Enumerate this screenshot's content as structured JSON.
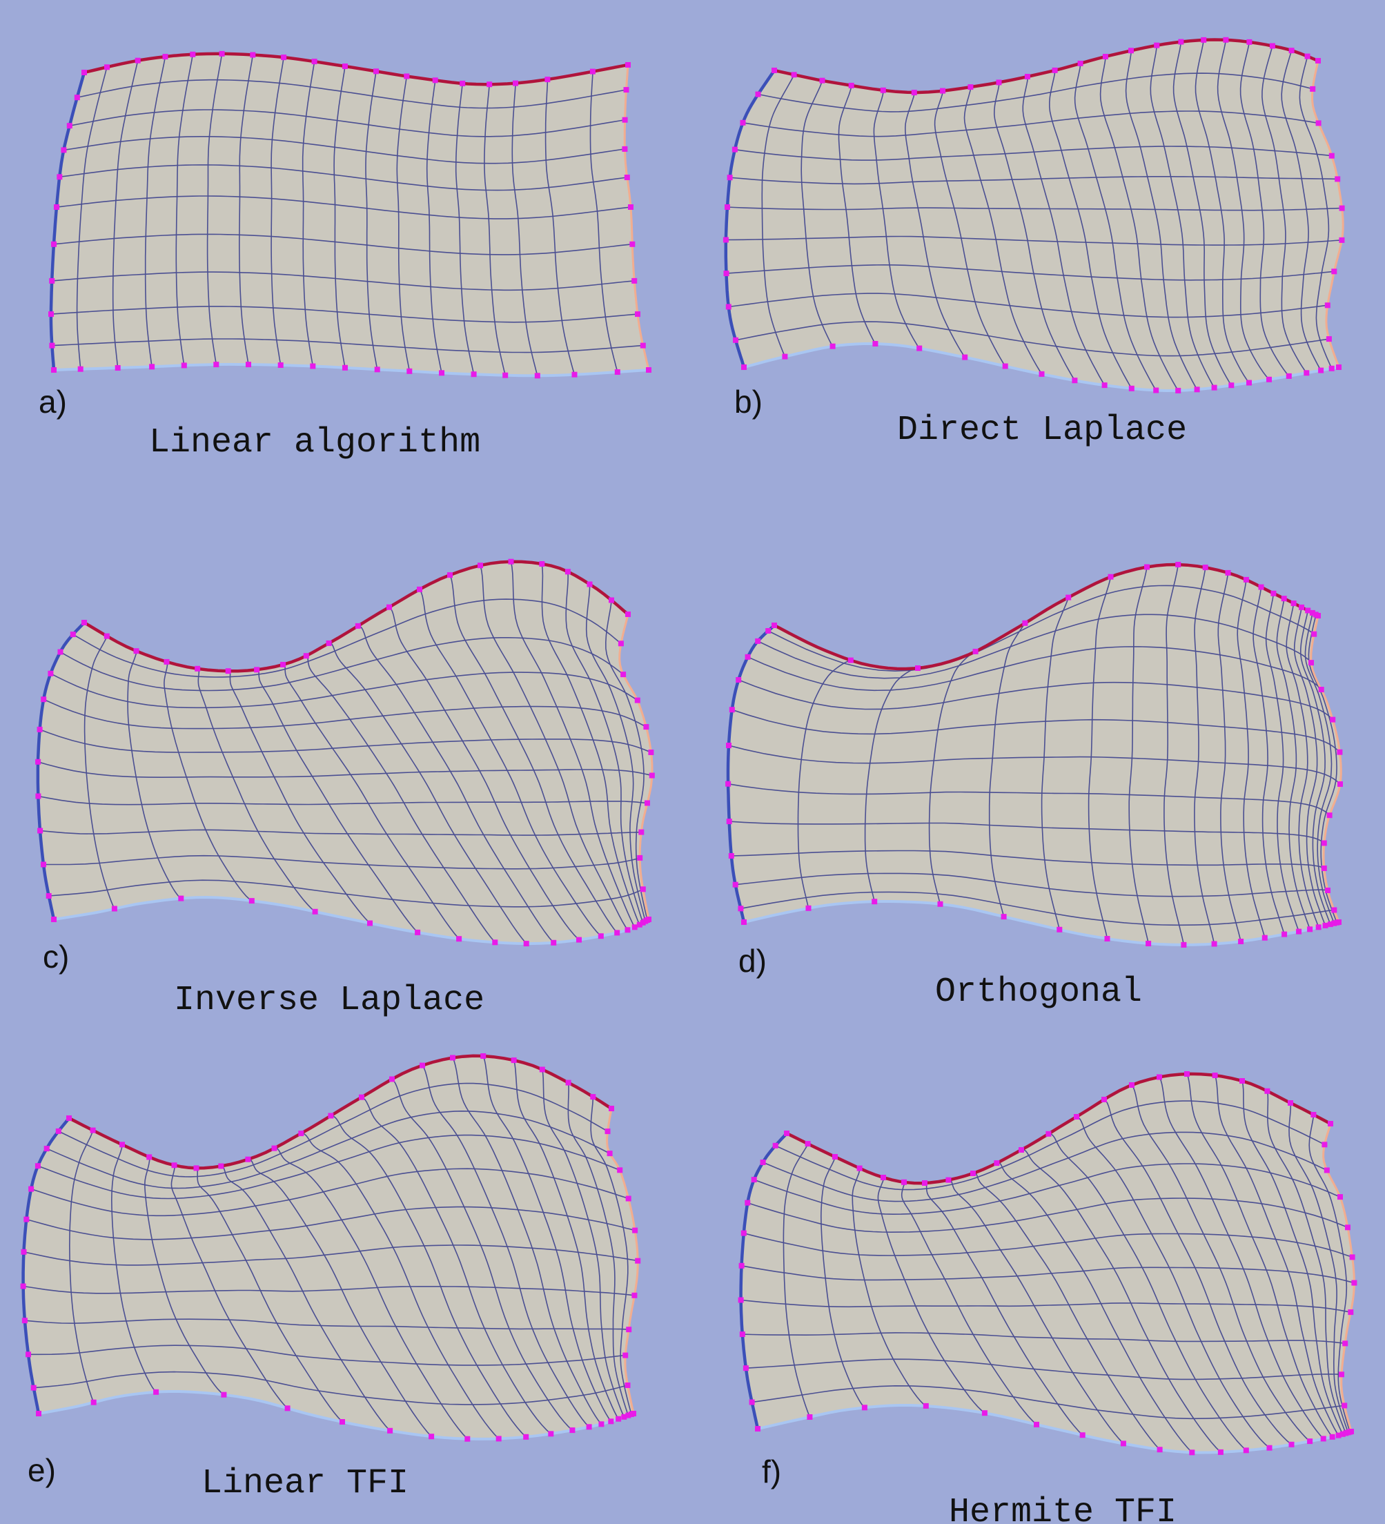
{
  "figure": {
    "background": "#9eaad8",
    "mesh_fill": "#cbc8be",
    "grid_line": "#4b4f92",
    "node_color": "#e81be8",
    "edges": {
      "top": "#b0143c",
      "left": "#3b4fb8",
      "right": "#f2ad90",
      "bottom": "#a9c6f2"
    }
  },
  "panels": [
    {
      "letter": "a)",
      "title": "Linear algorithm"
    },
    {
      "letter": "b)",
      "title": "Direct Laplace"
    },
    {
      "letter": "c)",
      "title": "Inverse Laplace"
    },
    {
      "letter": "d)",
      "title": "Orthogonal"
    },
    {
      "letter": "e)",
      "title": "Linear TFI"
    },
    {
      "letter": "f)",
      "title": "Hermite TFI"
    }
  ]
}
